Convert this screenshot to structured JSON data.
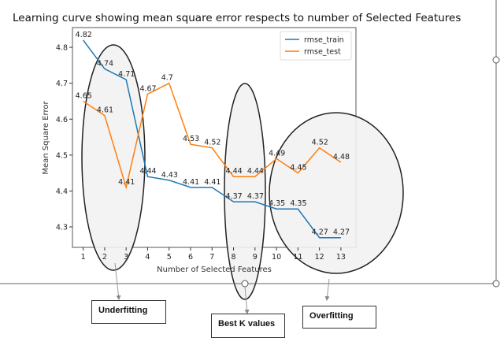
{
  "chart_data": {
    "type": "line",
    "title": "Learning curve showing mean square error respects to number of Selected Features",
    "xlabel": "Number of Selected Features",
    "ylabel": "Mean Square Error",
    "x": [
      1,
      2,
      3,
      4,
      5,
      6,
      7,
      8,
      9,
      10,
      11,
      12,
      13
    ],
    "xlim": [
      0.5,
      13.7
    ],
    "ylim": [
      4.243,
      4.855
    ],
    "yticks": [
      4.3,
      4.4,
      4.5,
      4.6,
      4.7,
      4.8
    ],
    "grid": false,
    "legend_position": "top-right",
    "series": [
      {
        "name": "rmse_train",
        "color": "#1f77b4",
        "values": [
          4.82,
          4.74,
          4.71,
          4.44,
          4.43,
          4.41,
          4.41,
          4.37,
          4.37,
          4.35,
          4.35,
          4.27,
          4.27
        ]
      },
      {
        "name": "rmse_test",
        "color": "#ff7f0e",
        "values": [
          4.65,
          4.61,
          4.41,
          4.67,
          4.7,
          4.53,
          4.52,
          4.44,
          4.44,
          4.49,
          4.45,
          4.52,
          4.48
        ]
      }
    ]
  },
  "annotations": {
    "underfitting": "Underfitting",
    "best_k": "Best K values",
    "overfitting": "Overfitting"
  }
}
